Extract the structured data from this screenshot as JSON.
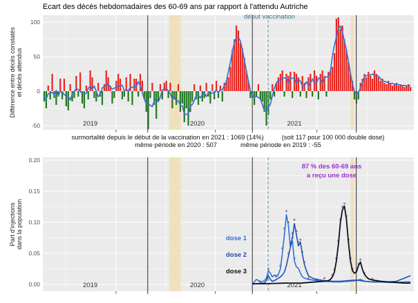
{
  "title": "Ecart des décès hebdomadaires des 60-69 ans par rapport à l'attendu Autriche",
  "subtitle": {
    "line1_left": "surmortalité depuis le début de la vaccination en 2021 : 1069  (14%)",
    "line1_right": "(soit 117 pour 100 000 double dose)",
    "line2_left": "même période en 2020 : 507",
    "line2_right": "même période en 2019 : -55"
  },
  "annotations": {
    "debut_vaccination": "début vaccination",
    "purple_line1": "87 % des 60-69 ans",
    "purple_line2": "a reçu une dose"
  },
  "colors": {
    "bar_positive": "#e8251f",
    "bar_negative": "#217821",
    "smooth_line": "#3f6fd1",
    "dose1": "#2e6fdf",
    "dose2": "#1f4eb0",
    "dose3": "#0d0d24",
    "band_beige": "#f2dfb8",
    "vline_solid": "#4d4d4d",
    "vline_dashed": "#6a95a5",
    "annotation_teal": "#3d7688",
    "annotation_purple": "#9b30d0",
    "raw_dots": "#8a8a8a",
    "panel_bg": "#ebebeb",
    "grid": "#ffffff"
  },
  "x_axis": {
    "year_labels": [
      {
        "text": "2019",
        "week": 23
      },
      {
        "text": "2020",
        "week": 76.5
      },
      {
        "text": "2021",
        "week": 125
      }
    ],
    "tick_weeks": [
      35.9,
      85.5,
      136.2
    ],
    "minor_grid_weeks": [
      10.8,
      60.7,
      110.85,
      161.4
    ],
    "weeks_total": 184,
    "weeks_start": "2019-W01"
  },
  "markers": {
    "solid_vlines_weeks": [
      51.7,
      104,
      155.9
    ],
    "dashed_vline_week": 111.9,
    "bands": [
      {
        "from_week": 62.4,
        "to_week": 68.3
      },
      {
        "from_week": 153.1,
        "to_week": 154.8
      }
    ]
  },
  "chart_data": [
    {
      "type": "bar",
      "panel": "top",
      "ylabel": [
        "Différence entre décès constatés",
        "et décès attendus"
      ],
      "yticks": [
        {
          "label": "100",
          "value": 100
        },
        {
          "label": "50",
          "value": 50
        },
        {
          "label": "0",
          "value": 0
        },
        {
          "label": "-50",
          "value": -50
        }
      ],
      "ylim": [
        -56,
        110
      ],
      "smooth": "centered 5-week moving average (blue line)",
      "values": [
        -15,
        -25,
        8,
        -12,
        25,
        -10,
        -20,
        -8,
        18,
        -12,
        18,
        -22,
        -28,
        10,
        -15,
        -10,
        22,
        -8,
        27,
        -18,
        -25,
        8,
        -12,
        30,
        20,
        -10,
        -15,
        12,
        -8,
        -20,
        10,
        30,
        20,
        8,
        -18,
        -10,
        15,
        25,
        18,
        -12,
        -8,
        20,
        -15,
        25,
        -20,
        18,
        18,
        -8,
        25,
        15,
        -12,
        -30,
        -55,
        -10,
        12,
        -20,
        -40,
        -15,
        10,
        -12,
        12,
        15,
        -10,
        12,
        -25,
        -12,
        -20,
        10,
        -30,
        -18,
        -45,
        -25,
        -50,
        -30,
        -15,
        10,
        -12,
        -20,
        8,
        -15,
        -10,
        12,
        -8,
        -18,
        10,
        -12,
        15,
        -10,
        8,
        -15,
        12,
        15,
        20,
        35,
        60,
        75,
        95,
        88,
        70,
        62,
        48,
        30,
        15,
        -10,
        -10,
        -20,
        -8,
        10,
        -12,
        -15,
        -30,
        -50,
        -35,
        -12,
        10,
        -8,
        12,
        20,
        25,
        30,
        -8,
        25,
        22,
        28,
        -10,
        28,
        25,
        20,
        -8,
        22,
        12,
        -10,
        20,
        25,
        -8,
        30,
        22,
        -12,
        25,
        30,
        22,
        -8,
        28,
        30,
        35,
        55,
        105,
        107,
        90,
        95,
        75,
        60,
        42,
        25,
        15,
        -12,
        -18,
        -12,
        12,
        18,
        25,
        20,
        28,
        22,
        18,
        30,
        25,
        20,
        15,
        18,
        12,
        10,
        15,
        12,
        8,
        10,
        12,
        8,
        10,
        8,
        6,
        8,
        10,
        6
      ]
    },
    {
      "type": "line",
      "panel": "bottom",
      "ylabel": [
        "Part d'injections",
        "dans la population"
      ],
      "yticks": [
        {
          "label": "0.20",
          "value": 0.2
        },
        {
          "label": "0.15",
          "value": 0.15
        },
        {
          "label": "0.10",
          "value": 0.1
        },
        {
          "label": "0.05",
          "value": 0.05
        },
        {
          "label": "0.00",
          "value": 0.0
        }
      ],
      "ylim": [
        0,
        0.205
      ],
      "series": [
        {
          "name": "dose 1",
          "color_key": "dose1",
          "points": [
            [
              104,
              0.001
            ],
            [
              105,
              0.004
            ],
            [
              106,
              0.008
            ],
            [
              107,
              0.006
            ],
            [
              108,
              0.003
            ],
            [
              109,
              0.004
            ],
            [
              110,
              0.006
            ],
            [
              111,
              0.01
            ],
            [
              112,
              0.022
            ],
            [
              113,
              0.018
            ],
            [
              114,
              0.012
            ],
            [
              115,
              0.015
            ],
            [
              116,
              0.012
            ],
            [
              117,
              0.016
            ],
            [
              118,
              0.025
            ],
            [
              119,
              0.05
            ],
            [
              120,
              0.08
            ],
            [
              121,
              0.112
            ],
            [
              122,
              0.095
            ],
            [
              123,
              0.06
            ],
            [
              124,
              0.07
            ],
            [
              125,
              0.038
            ],
            [
              126,
              0.028
            ],
            [
              127,
              0.026
            ],
            [
              128,
              0.018
            ],
            [
              129,
              0.012
            ],
            [
              130,
              0.01
            ],
            [
              132,
              0.008
            ],
            [
              134,
              0.007
            ],
            [
              136,
              0.006
            ],
            [
              140,
              0.005
            ],
            [
              144,
              0.004
            ],
            [
              148,
              0.004
            ],
            [
              152,
              0.005
            ],
            [
              156,
              0.006
            ],
            [
              158,
              0.008
            ],
            [
              160,
              0.005
            ],
            [
              164,
              0.004
            ],
            [
              168,
              0.004
            ],
            [
              172,
              0.003
            ],
            [
              176,
              0.003
            ],
            [
              180,
              0.004
            ],
            [
              183,
              0.004
            ]
          ]
        },
        {
          "name": "dose 2",
          "color_key": "dose2",
          "points": [
            [
              104,
              0.0005
            ],
            [
              106,
              0.001
            ],
            [
              108,
              0.001
            ],
            [
              110,
              0.002
            ],
            [
              111,
              0.006
            ],
            [
              112,
              0.014
            ],
            [
              113,
              0.008
            ],
            [
              114,
              0.005
            ],
            [
              115,
              0.006
            ],
            [
              116,
              0.008
            ],
            [
              117,
              0.01
            ],
            [
              118,
              0.012
            ],
            [
              119,
              0.015
            ],
            [
              120,
              0.02
            ],
            [
              121,
              0.03
            ],
            [
              122,
              0.045
            ],
            [
              123,
              0.06
            ],
            [
              124,
              0.075
            ],
            [
              125,
              0.098
            ],
            [
              126,
              0.08
            ],
            [
              127,
              0.062
            ],
            [
              128,
              0.068
            ],
            [
              129,
              0.048
            ],
            [
              130,
              0.032
            ],
            [
              131,
              0.022
            ],
            [
              132,
              0.014
            ],
            [
              134,
              0.01
            ],
            [
              136,
              0.008
            ],
            [
              140,
              0.006
            ],
            [
              144,
              0.005
            ],
            [
              148,
              0.005
            ],
            [
              152,
              0.006
            ],
            [
              156,
              0.007
            ],
            [
              160,
              0.005
            ],
            [
              164,
              0.004
            ],
            [
              168,
              0.004
            ],
            [
              172,
              0.004
            ],
            [
              176,
              0.005
            ],
            [
              180,
              0.01
            ],
            [
              183,
              0.014
            ]
          ]
        },
        {
          "name": "dose 3",
          "color_key": "dose3",
          "points": [
            [
              104,
              0.001
            ],
            [
              110,
              0.001
            ],
            [
              120,
              0.002
            ],
            [
              128,
              0.002
            ],
            [
              132,
              0.003
            ],
            [
              136,
              0.004
            ],
            [
              140,
              0.005
            ],
            [
              142,
              0.006
            ],
            [
              143,
              0.008
            ],
            [
              144,
              0.012
            ],
            [
              145,
              0.02
            ],
            [
              146,
              0.038
            ],
            [
              147,
              0.065
            ],
            [
              148,
              0.1
            ],
            [
              149,
              0.12
            ],
            [
              150,
              0.126
            ],
            [
              151,
              0.105
            ],
            [
              152,
              0.068
            ],
            [
              153,
              0.038
            ],
            [
              154,
              0.022
            ],
            [
              155,
              0.018
            ],
            [
              156,
              0.02
            ],
            [
              157,
              0.03
            ],
            [
              158,
              0.036
            ],
            [
              159,
              0.024
            ],
            [
              160,
              0.016
            ],
            [
              161,
              0.012
            ],
            [
              162,
              0.009
            ],
            [
              164,
              0.007
            ],
            [
              168,
              0.005
            ],
            [
              172,
              0.004
            ],
            [
              176,
              0.003
            ],
            [
              180,
              0.002
            ],
            [
              183,
              0.002
            ]
          ]
        }
      ],
      "raw_dots": [
        [
          108,
          0.005
        ],
        [
          112,
          0.025
        ],
        [
          116,
          0.014
        ],
        [
          118,
          0.03
        ],
        [
          119,
          0.058
        ],
        [
          120,
          0.09
        ],
        [
          121,
          0.118
        ],
        [
          122,
          0.1
        ],
        [
          123,
          0.068
        ],
        [
          124,
          0.075
        ],
        [
          125,
          0.042
        ],
        [
          122,
          0.05
        ],
        [
          123,
          0.066
        ],
        [
          124,
          0.082
        ],
        [
          125,
          0.104
        ],
        [
          126,
          0.086
        ],
        [
          127,
          0.068
        ],
        [
          128,
          0.072
        ],
        [
          129,
          0.052
        ],
        [
          130,
          0.036
        ],
        [
          132,
          0.01
        ],
        [
          136,
          0.008
        ],
        [
          140,
          0.01
        ],
        [
          144,
          0.015
        ],
        [
          145,
          0.024
        ],
        [
          146,
          0.042
        ],
        [
          147,
          0.07
        ],
        [
          148,
          0.105
        ],
        [
          149,
          0.125
        ],
        [
          150,
          0.13
        ],
        [
          151,
          0.11
        ],
        [
          152,
          0.072
        ],
        [
          153,
          0.042
        ],
        [
          154,
          0.025
        ],
        [
          156,
          0.022
        ],
        [
          157,
          0.033
        ],
        [
          158,
          0.04
        ],
        [
          160,
          0.018
        ],
        [
          164,
          0.009
        ]
      ]
    }
  ]
}
